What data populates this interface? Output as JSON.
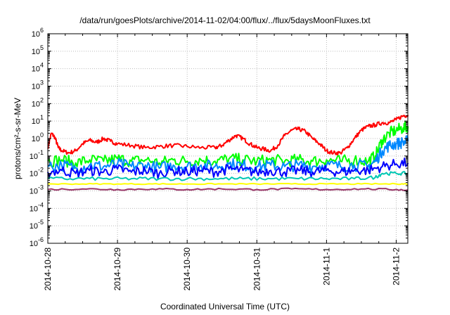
{
  "chart_data": {
    "type": "line",
    "title": "/data/run/goesPlots/archive/2014-11-02/04:00/flux/../flux/5daysMoonFluxes.txt",
    "xlabel": "Coordinated Universal Time (UTC)",
    "ylabel": "protons/cm²-s-sr-MeV",
    "yscale": "log",
    "ylim": [
      1e-06,
      1000000.0
    ],
    "yticks": [
      {
        "base": "10",
        "exp": "-6"
      },
      {
        "base": "10",
        "exp": "-5"
      },
      {
        "base": "10",
        "exp": "-4"
      },
      {
        "base": "10",
        "exp": "-3"
      },
      {
        "base": "10",
        "exp": "-2"
      },
      {
        "base": "10",
        "exp": "-1"
      },
      {
        "base": "10",
        "exp": "0"
      },
      {
        "base": "10",
        "exp": "1"
      },
      {
        "base": "10",
        "exp": "2"
      },
      {
        "base": "10",
        "exp": "3"
      },
      {
        "base": "10",
        "exp": "4"
      },
      {
        "base": "10",
        "exp": "5"
      },
      {
        "base": "10",
        "exp": "6"
      }
    ],
    "xlim": [
      "2014-10-28 00:00",
      "2014-11-02 04:00"
    ],
    "xticks": [
      "2014-10-28",
      "2014-10-29",
      "2014-10-30",
      "2014-10-31",
      "2014-11-1",
      "2014-11-2"
    ],
    "grid": true,
    "legend": "none",
    "series": [
      {
        "color": "#ff0000",
        "x": [
          0.0,
          0.05,
          0.1,
          0.15,
          0.2,
          0.3,
          0.4,
          0.5,
          0.6,
          0.7,
          0.8,
          0.9,
          1.0,
          1.2,
          1.4,
          1.6,
          1.8,
          2.0,
          2.2,
          2.4,
          2.5,
          2.6,
          2.7,
          2.8,
          2.9,
          3.0,
          3.1,
          3.2,
          3.3,
          3.4,
          3.5,
          3.6,
          3.7,
          3.8,
          3.9,
          4.0,
          4.1,
          4.2,
          4.3,
          4.4,
          4.5,
          4.6,
          4.7,
          4.8,
          4.9,
          5.0,
          5.1,
          5.17
        ],
        "values": [
          0.3,
          2.0,
          1.2,
          0.3,
          0.2,
          0.15,
          0.2,
          0.5,
          0.8,
          0.6,
          1.0,
          0.7,
          0.5,
          0.4,
          0.3,
          0.35,
          0.4,
          0.35,
          0.3,
          0.3,
          0.4,
          0.8,
          1.5,
          1.0,
          0.5,
          0.3,
          0.25,
          0.2,
          0.4,
          1.5,
          3.0,
          3.5,
          2.5,
          1.0,
          0.5,
          0.2,
          0.15,
          0.15,
          0.3,
          1.0,
          3.0,
          5.0,
          6.0,
          8.0,
          8.0,
          12,
          20,
          22
        ]
      },
      {
        "color": "#00ff00",
        "x": [
          0.0,
          0.2,
          0.4,
          0.6,
          0.8,
          1.0,
          1.2,
          1.4,
          1.6,
          1.8,
          2.0,
          2.2,
          2.4,
          2.6,
          2.8,
          3.0,
          3.2,
          3.4,
          3.6,
          3.8,
          4.0,
          4.2,
          4.4,
          4.6,
          4.7,
          4.8,
          4.9,
          5.0,
          5.1,
          5.17
        ],
        "values": [
          0.05,
          0.06,
          0.04,
          0.06,
          0.05,
          0.07,
          0.05,
          0.06,
          0.04,
          0.06,
          0.05,
          0.06,
          0.05,
          0.07,
          0.06,
          0.05,
          0.06,
          0.05,
          0.06,
          0.05,
          0.06,
          0.05,
          0.06,
          0.05,
          0.1,
          0.8,
          2.0,
          3.0,
          4.0,
          5.0
        ]
      },
      {
        "color": "#0088ff",
        "x": [
          0.0,
          0.2,
          0.4,
          0.6,
          0.8,
          1.0,
          1.2,
          1.4,
          1.6,
          1.8,
          2.0,
          2.2,
          2.4,
          2.6,
          2.8,
          3.0,
          3.2,
          3.4,
          3.6,
          3.8,
          4.0,
          4.2,
          4.4,
          4.6,
          4.7,
          4.8,
          4.9,
          5.0,
          5.1,
          5.17
        ],
        "values": [
          0.025,
          0.03,
          0.02,
          0.03,
          0.025,
          0.035,
          0.025,
          0.03,
          0.02,
          0.03,
          0.025,
          0.03,
          0.025,
          0.035,
          0.03,
          0.025,
          0.03,
          0.025,
          0.03,
          0.025,
          0.03,
          0.025,
          0.03,
          0.025,
          0.05,
          0.2,
          0.4,
          0.5,
          0.6,
          0.7
        ]
      },
      {
        "color": "#0000ff",
        "x": [
          0.0,
          0.2,
          0.4,
          0.6,
          0.8,
          1.0,
          1.2,
          1.4,
          1.6,
          1.8,
          2.0,
          2.2,
          2.4,
          2.6,
          2.8,
          3.0,
          3.2,
          3.4,
          3.6,
          3.8,
          4.0,
          4.2,
          4.4,
          4.6,
          4.8,
          5.0,
          5.17
        ],
        "values": [
          0.012,
          0.015,
          0.01,
          0.015,
          0.012,
          0.018,
          0.012,
          0.015,
          0.01,
          0.015,
          0.012,
          0.015,
          0.012,
          0.018,
          0.015,
          0.012,
          0.015,
          0.012,
          0.015,
          0.012,
          0.015,
          0.012,
          0.015,
          0.015,
          0.025,
          0.035,
          0.04
        ]
      },
      {
        "color": "#00c8b4",
        "x": [
          0.0,
          0.4,
          0.8,
          1.2,
          1.6,
          2.0,
          2.4,
          2.8,
          3.2,
          3.6,
          4.0,
          4.4,
          4.7,
          4.8,
          5.0,
          5.17
        ],
        "values": [
          0.005,
          0.005,
          0.005,
          0.005,
          0.005,
          0.005,
          0.005,
          0.005,
          0.005,
          0.005,
          0.005,
          0.005,
          0.006,
          0.01,
          0.01,
          0.01
        ]
      },
      {
        "color": "#ffff00",
        "x": [
          0.0,
          0.5,
          1.0,
          1.5,
          2.0,
          2.5,
          3.0,
          3.5,
          4.0,
          4.5,
          5.0,
          5.17
        ],
        "values": [
          0.0025,
          0.0025,
          0.0025,
          0.0025,
          0.0025,
          0.0025,
          0.0025,
          0.0025,
          0.0025,
          0.0025,
          0.0025,
          0.0025
        ]
      },
      {
        "color": "#993366",
        "x": [
          0.0,
          0.5,
          1.0,
          1.5,
          2.0,
          2.5,
          3.0,
          3.5,
          4.0,
          4.5,
          5.0,
          5.17
        ],
        "values": [
          0.0012,
          0.0013,
          0.0012,
          0.0013,
          0.0012,
          0.0013,
          0.0012,
          0.0013,
          0.0012,
          0.0013,
          0.0012,
          0.0011
        ]
      }
    ]
  }
}
